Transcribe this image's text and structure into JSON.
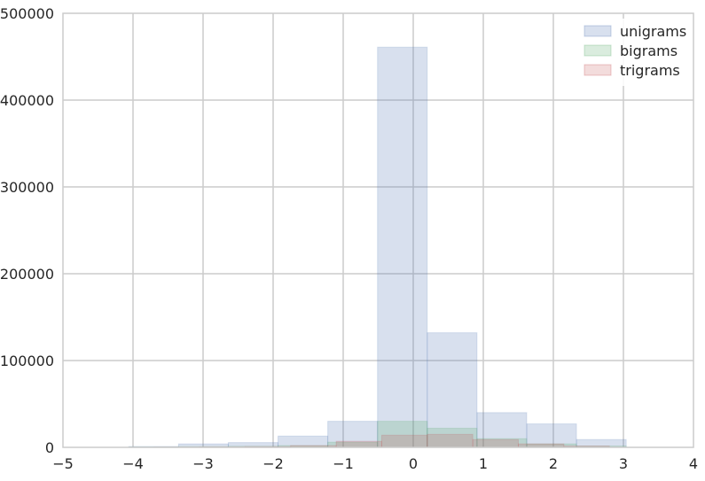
{
  "chart_data": {
    "type": "histogram",
    "xlim": [
      -5,
      4
    ],
    "ylim": [
      0,
      500000
    ],
    "x_ticks": [
      -5,
      -4,
      -3,
      -2,
      -1,
      0,
      1,
      2,
      3,
      4
    ],
    "x_tick_labels": [
      "−5",
      "−4",
      "−3",
      "−2",
      "−1",
      "0",
      "1",
      "2",
      "3",
      "4"
    ],
    "y_ticks": [
      0,
      100000,
      200000,
      300000,
      400000,
      500000
    ],
    "y_tick_labels": [
      "0",
      "100000",
      "200000",
      "300000",
      "400000",
      "500000"
    ],
    "grid": true,
    "legend_position": "top-right",
    "series": [
      {
        "name": "unigrams",
        "color": "#4c72b0",
        "opacity": 0.22,
        "bins": [
          {
            "x0": -4.06,
            "x1": -3.35,
            "value": 1000
          },
          {
            "x0": -3.35,
            "x1": -2.64,
            "value": 4000
          },
          {
            "x0": -2.64,
            "x1": -1.93,
            "value": 5500
          },
          {
            "x0": -1.93,
            "x1": -1.22,
            "value": 13000
          },
          {
            "x0": -1.22,
            "x1": -0.51,
            "value": 30000
          },
          {
            "x0": -0.51,
            "x1": 0.2,
            "value": 461000
          },
          {
            "x0": 0.2,
            "x1": 0.91,
            "value": 132000
          },
          {
            "x0": 0.91,
            "x1": 1.62,
            "value": 40000
          },
          {
            "x0": 1.62,
            "x1": 2.33,
            "value": 27000
          },
          {
            "x0": 2.33,
            "x1": 3.04,
            "value": 9000
          }
        ]
      },
      {
        "name": "bigrams",
        "color": "#55a868",
        "opacity": 0.22,
        "bins": [
          {
            "x0": -4.06,
            "x1": -3.35,
            "value": 500
          },
          {
            "x0": -3.35,
            "x1": -2.64,
            "value": 800
          },
          {
            "x0": -2.64,
            "x1": -1.93,
            "value": 1200
          },
          {
            "x0": -1.93,
            "x1": -1.22,
            "value": 2000
          },
          {
            "x0": -1.22,
            "x1": -0.51,
            "value": 6000
          },
          {
            "x0": -0.51,
            "x1": 0.2,
            "value": 30000
          },
          {
            "x0": 0.2,
            "x1": 0.91,
            "value": 22000
          },
          {
            "x0": 0.91,
            "x1": 1.62,
            "value": 10000
          },
          {
            "x0": 1.62,
            "x1": 2.33,
            "value": 4000
          },
          {
            "x0": 2.33,
            "x1": 3.04,
            "value": 1500
          }
        ]
      },
      {
        "name": "trigrams",
        "color": "#c44e52",
        "opacity": 0.2,
        "bins": [
          {
            "x0": -3.7,
            "x1": -3.05,
            "value": 400
          },
          {
            "x0": -3.05,
            "x1": -2.4,
            "value": 600
          },
          {
            "x0": -2.4,
            "x1": -1.75,
            "value": 900
          },
          {
            "x0": -1.75,
            "x1": -1.1,
            "value": 2000
          },
          {
            "x0": -1.1,
            "x1": -0.45,
            "value": 7000
          },
          {
            "x0": -0.45,
            "x1": 0.2,
            "value": 14000
          },
          {
            "x0": 0.2,
            "x1": 0.85,
            "value": 15000
          },
          {
            "x0": 0.85,
            "x1": 1.5,
            "value": 9000
          },
          {
            "x0": 1.5,
            "x1": 2.15,
            "value": 4000
          },
          {
            "x0": 2.15,
            "x1": 2.8,
            "value": 1500
          }
        ]
      }
    ]
  }
}
